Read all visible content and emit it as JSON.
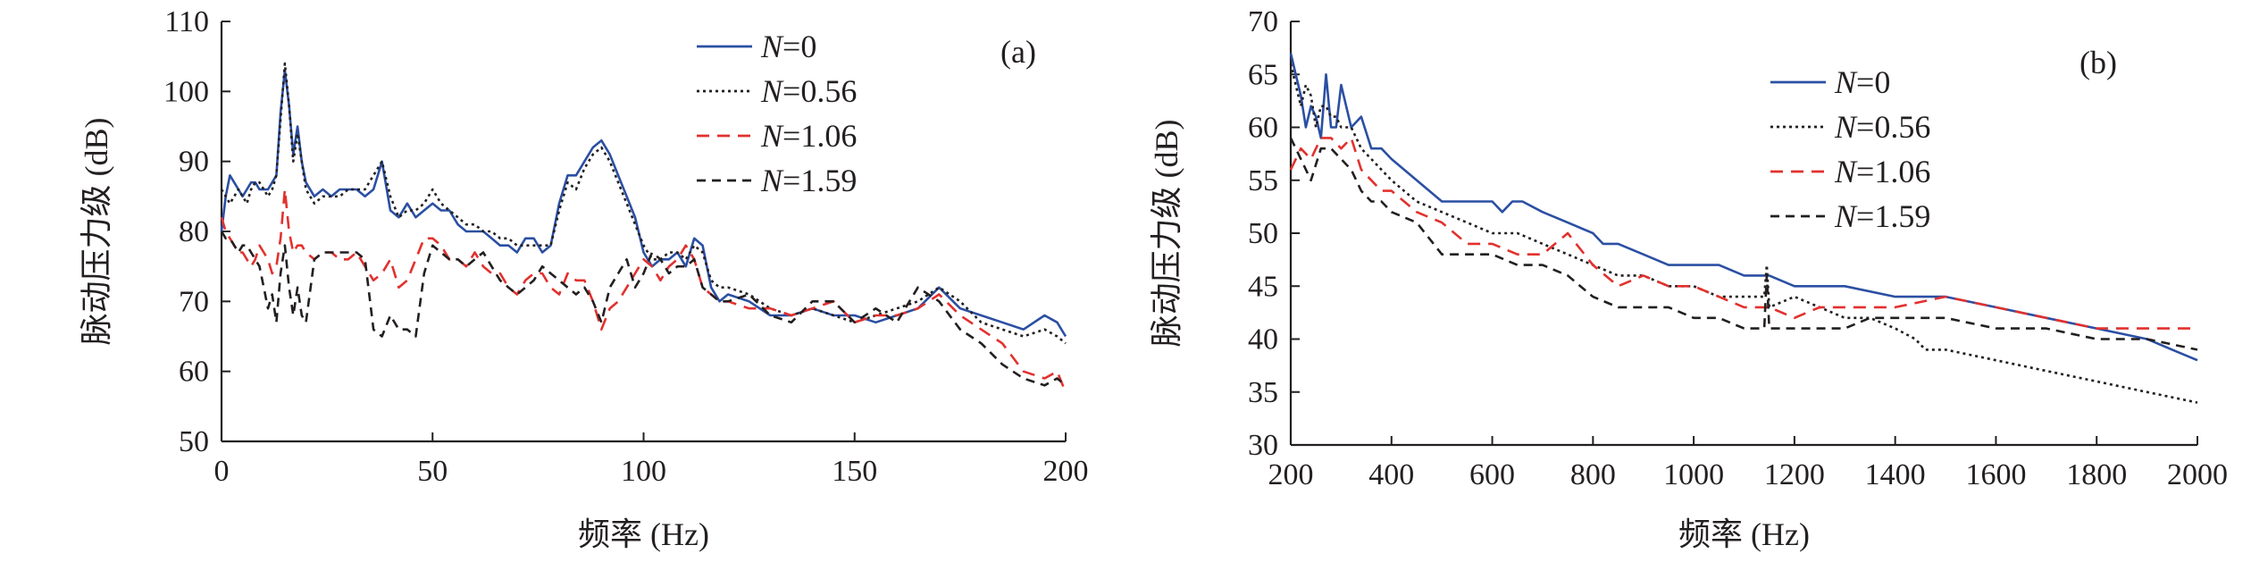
{
  "chart_data": [
    {
      "type": "line",
      "panel_label": "(a)",
      "xlabel": "频率 (Hz)",
      "ylabel": "脉动压力级 (dB)",
      "xlim": [
        0,
        200
      ],
      "ylim": [
        50,
        110
      ],
      "xticks": [
        0,
        50,
        100,
        150,
        200
      ],
      "yticks": [
        50,
        60,
        70,
        80,
        90,
        100,
        110
      ],
      "grid": false,
      "legend_position": "top-right",
      "series": [
        {
          "name": "N=0",
          "legend_italic": "N",
          "legend_rest": "=0",
          "color": "#2b4fa3",
          "dash": "solid",
          "x": [
            0,
            1,
            2,
            3,
            4,
            5,
            6,
            7,
            8,
            9,
            10,
            11,
            12,
            13,
            14,
            15,
            16,
            17,
            18,
            19,
            20,
            22,
            24,
            26,
            28,
            30,
            32,
            34,
            36,
            38,
            40,
            42,
            44,
            46,
            48,
            50,
            52,
            54,
            56,
            58,
            60,
            62,
            64,
            66,
            68,
            70,
            72,
            74,
            76,
            78,
            80,
            82,
            84,
            86,
            88,
            90,
            92,
            94,
            96,
            98,
            100,
            102,
            104,
            106,
            108,
            110,
            112,
            114,
            116,
            118,
            120,
            125,
            130,
            135,
            140,
            145,
            150,
            155,
            160,
            165,
            170,
            175,
            180,
            185,
            190,
            195,
            198,
            200
          ],
          "y": [
            80,
            85,
            88,
            87,
            86,
            85,
            86,
            87,
            87,
            86,
            86,
            86,
            87,
            88,
            97,
            103,
            98,
            91,
            95,
            90,
            87,
            85,
            86,
            85,
            86,
            86,
            86,
            85,
            86,
            90,
            83,
            82,
            84,
            82,
            83,
            84,
            83,
            83,
            81,
            80,
            80,
            80,
            79,
            78,
            78,
            77,
            79,
            79,
            77,
            78,
            84,
            88,
            88,
            90,
            92,
            93,
            91,
            88,
            85,
            82,
            77,
            75,
            76,
            76,
            77,
            75,
            79,
            78,
            72,
            70,
            71,
            70,
            68,
            68,
            69,
            68,
            68,
            67,
            68,
            69,
            72,
            69,
            68,
            67,
            66,
            68,
            67,
            65
          ]
        },
        {
          "name": "N=0.56",
          "legend_italic": "N",
          "legend_rest": "=0.56",
          "color": "#231f20",
          "dash": "3,4",
          "x": [
            0,
            1,
            2,
            3,
            4,
            5,
            6,
            7,
            8,
            9,
            10,
            11,
            12,
            13,
            14,
            15,
            16,
            17,
            18,
            19,
            20,
            22,
            24,
            26,
            28,
            30,
            32,
            34,
            36,
            38,
            40,
            42,
            44,
            46,
            48,
            50,
            52,
            54,
            56,
            58,
            60,
            62,
            64,
            66,
            68,
            70,
            72,
            74,
            76,
            78,
            80,
            82,
            84,
            86,
            88,
            90,
            92,
            94,
            96,
            98,
            100,
            102,
            104,
            106,
            108,
            110,
            112,
            114,
            116,
            118,
            120,
            125,
            130,
            135,
            140,
            145,
            150,
            155,
            160,
            165,
            170,
            175,
            180,
            185,
            190,
            195,
            198,
            200
          ],
          "y": [
            86,
            85,
            84,
            85,
            86,
            85,
            84,
            86,
            87,
            87,
            86,
            85,
            86,
            88,
            96,
            104,
            98,
            90,
            94,
            90,
            86,
            84,
            85,
            85,
            85,
            86,
            86,
            86,
            88,
            90,
            85,
            82,
            83,
            83,
            84,
            86,
            84,
            83,
            82,
            81,
            81,
            80,
            80,
            79,
            79,
            78,
            78,
            78,
            78,
            78,
            83,
            87,
            86,
            89,
            91,
            92,
            90,
            87,
            84,
            81,
            78,
            76,
            76,
            77,
            77,
            76,
            78,
            77,
            73,
            72,
            72,
            71,
            69,
            68,
            69,
            68,
            67,
            68,
            69,
            70,
            72,
            70,
            67,
            66,
            65,
            66,
            65,
            64
          ]
        },
        {
          "name": "N=1.06",
          "legend_italic": "N",
          "legend_rest": "=1.06",
          "color": "#e2312e",
          "dash": "14,9",
          "x": [
            0,
            1,
            2,
            3,
            4,
            5,
            6,
            7,
            8,
            9,
            10,
            11,
            12,
            13,
            14,
            15,
            16,
            17,
            18,
            19,
            20,
            22,
            24,
            26,
            28,
            30,
            32,
            34,
            36,
            38,
            40,
            42,
            44,
            46,
            48,
            50,
            52,
            54,
            56,
            58,
            60,
            62,
            64,
            66,
            68,
            70,
            72,
            74,
            76,
            78,
            80,
            82,
            84,
            86,
            88,
            90,
            92,
            94,
            96,
            98,
            100,
            102,
            104,
            106,
            108,
            110,
            112,
            114,
            116,
            118,
            120,
            125,
            130,
            135,
            140,
            145,
            150,
            155,
            160,
            165,
            170,
            175,
            180,
            185,
            190,
            195,
            198,
            200
          ],
          "y": [
            82,
            80,
            79,
            78,
            77,
            77,
            76,
            75,
            76,
            78,
            77,
            76,
            74,
            75,
            79,
            86,
            80,
            77,
            78,
            78,
            77,
            76,
            77,
            77,
            76,
            76,
            77,
            75,
            73,
            74,
            76,
            72,
            73,
            76,
            79,
            79,
            78,
            76,
            76,
            75,
            77,
            75,
            74,
            74,
            72,
            71,
            73,
            74,
            74,
            72,
            71,
            74,
            73,
            73,
            70,
            66,
            69,
            70,
            72,
            74,
            76,
            75,
            73,
            75,
            76,
            78,
            76,
            72,
            71,
            70,
            70,
            69,
            69,
            68,
            69,
            70,
            67,
            68,
            68,
            69,
            71,
            68,
            66,
            64,
            60,
            59,
            60,
            57
          ]
        },
        {
          "name": "N=1.59",
          "legend_italic": "N",
          "legend_rest": "=1.59",
          "color": "#231f20",
          "dash": "10,7",
          "x": [
            0,
            1,
            2,
            3,
            4,
            5,
            6,
            7,
            8,
            9,
            10,
            11,
            12,
            13,
            14,
            15,
            16,
            17,
            18,
            19,
            20,
            22,
            24,
            26,
            28,
            30,
            32,
            34,
            36,
            38,
            40,
            42,
            44,
            46,
            48,
            50,
            52,
            54,
            56,
            58,
            60,
            62,
            64,
            66,
            68,
            70,
            72,
            74,
            76,
            78,
            80,
            82,
            84,
            86,
            88,
            90,
            92,
            94,
            96,
            98,
            100,
            102,
            104,
            106,
            108,
            110,
            112,
            114,
            116,
            118,
            120,
            125,
            130,
            135,
            140,
            145,
            150,
            155,
            160,
            165,
            170,
            175,
            180,
            185,
            190,
            195,
            198,
            200
          ],
          "y": [
            80,
            79,
            79,
            78,
            77,
            78,
            78,
            77,
            76,
            75,
            72,
            69,
            71,
            67,
            74,
            78,
            72,
            68,
            72,
            68,
            67,
            76,
            77,
            77,
            77,
            77,
            77,
            76,
            66,
            65,
            68,
            66,
            66,
            65,
            74,
            78,
            77,
            76,
            76,
            75,
            76,
            77,
            75,
            73,
            72,
            71,
            72,
            73,
            75,
            74,
            73,
            72,
            71,
            72,
            70,
            67,
            72,
            74,
            76,
            72,
            74,
            77,
            76,
            74,
            75,
            75,
            76,
            72,
            71,
            70,
            70,
            71,
            68,
            67,
            70,
            70,
            67,
            69,
            67,
            72,
            70,
            66,
            64,
            61,
            59,
            58,
            59,
            58
          ]
        }
      ]
    },
    {
      "type": "line",
      "panel_label": "(b)",
      "xlabel": "频率 (Hz)",
      "ylabel": "脉动压力级 (dB)",
      "xlim": [
        200,
        2000
      ],
      "ylim": [
        30,
        70
      ],
      "xticks": [
        200,
        400,
        600,
        800,
        1000,
        1200,
        1400,
        1600,
        1800,
        2000
      ],
      "yticks": [
        30,
        35,
        40,
        45,
        50,
        55,
        60,
        65,
        70
      ],
      "grid": false,
      "legend_position": "top-right",
      "series": [
        {
          "name": "N=0",
          "legend_italic": "N",
          "legend_rest": "=0",
          "color": "#2b4fa3",
          "dash": "solid",
          "x": [
            200,
            210,
            220,
            230,
            240,
            250,
            260,
            270,
            280,
            290,
            300,
            320,
            340,
            360,
            380,
            400,
            450,
            500,
            550,
            600,
            620,
            640,
            660,
            700,
            750,
            800,
            820,
            850,
            900,
            950,
            1000,
            1050,
            1100,
            1150,
            1200,
            1250,
            1300,
            1400,
            1500,
            1600,
            1700,
            1800,
            1900,
            1950,
            2000
          ],
          "y": [
            67,
            65,
            63,
            60,
            62,
            61,
            59,
            65,
            60,
            60,
            64,
            60,
            61,
            58,
            58,
            57,
            55,
            53,
            53,
            53,
            52,
            53,
            53,
            52,
            51,
            50,
            49,
            49,
            48,
            47,
            47,
            47,
            46,
            46,
            45,
            45,
            45,
            44,
            44,
            43,
            42,
            41,
            40,
            39,
            38
          ]
        },
        {
          "name": "N=0.56",
          "legend_italic": "N",
          "legend_rest": "=0.56",
          "color": "#231f20",
          "dash": "3,4",
          "x": [
            200,
            210,
            220,
            230,
            240,
            250,
            260,
            270,
            280,
            290,
            300,
            320,
            340,
            360,
            380,
            400,
            450,
            500,
            550,
            600,
            650,
            700,
            750,
            800,
            850,
            900,
            950,
            1000,
            1050,
            1100,
            1140,
            1145,
            1150,
            1200,
            1250,
            1300,
            1350,
            1400,
            1440,
            1460,
            1500,
            1600,
            1700,
            1800,
            1900,
            2000
          ],
          "y": [
            66,
            64,
            62,
            64,
            63,
            60,
            62,
            62,
            61,
            61,
            60,
            60,
            58,
            57,
            56,
            55,
            53,
            52,
            51,
            50,
            50,
            49,
            48,
            47,
            46,
            46,
            45,
            45,
            44,
            44,
            44,
            47,
            43,
            44,
            43,
            42,
            42,
            41,
            40,
            39,
            39,
            38,
            37,
            36,
            35,
            34
          ]
        },
        {
          "name": "N=1.06",
          "legend_italic": "N",
          "legend_rest": "=1.06",
          "color": "#e2312e",
          "dash": "14,9",
          "x": [
            200,
            220,
            240,
            260,
            280,
            300,
            320,
            340,
            360,
            380,
            400,
            450,
            500,
            550,
            600,
            650,
            700,
            750,
            800,
            850,
            900,
            950,
            1000,
            1050,
            1100,
            1150,
            1200,
            1250,
            1300,
            1400,
            1500,
            1600,
            1700,
            1800,
            1900,
            2000
          ],
          "y": [
            56,
            58,
            57,
            59,
            59,
            58,
            59,
            56,
            55,
            54,
            54,
            52,
            51,
            49,
            49,
            48,
            48,
            50,
            47,
            45,
            46,
            45,
            45,
            44,
            43,
            43,
            42,
            43,
            43,
            43,
            44,
            43,
            42,
            41,
            41,
            41
          ]
        },
        {
          "name": "N=1.59",
          "legend_italic": "N",
          "legend_rest": "=1.59",
          "color": "#231f20",
          "dash": "10,7",
          "x": [
            200,
            220,
            240,
            260,
            280,
            300,
            320,
            340,
            360,
            380,
            400,
            450,
            500,
            550,
            600,
            650,
            700,
            750,
            800,
            850,
            900,
            950,
            1000,
            1050,
            1100,
            1140,
            1145,
            1150,
            1200,
            1250,
            1300,
            1350,
            1400,
            1440,
            1460,
            1500,
            1600,
            1700,
            1800,
            1900,
            2000
          ],
          "y": [
            59,
            57,
            55,
            58,
            58,
            57,
            56,
            54,
            53,
            53,
            52,
            51,
            48,
            48,
            48,
            47,
            47,
            46,
            44,
            43,
            43,
            43,
            42,
            42,
            41,
            41,
            46,
            41,
            41,
            41,
            41,
            42,
            42,
            42,
            42,
            42,
            41,
            41,
            40,
            40,
            39
          ]
        }
      ]
    }
  ]
}
